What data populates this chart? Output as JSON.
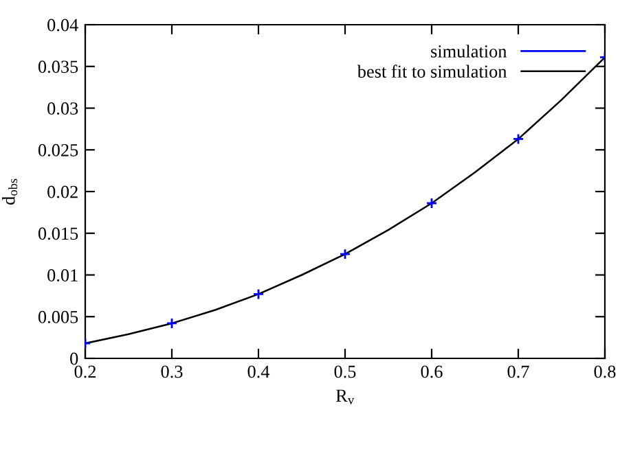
{
  "chart_data": {
    "type": "scatter",
    "xlabel": "R$_{v}$",
    "ylabel": "d$_{obs}$",
    "x": [
      0.2,
      0.3,
      0.4,
      0.5,
      0.6,
      0.7,
      0.8
    ],
    "series": [
      {
        "name": "simulation",
        "color": "#0000ff",
        "marker": "cross",
        "values": [
          0.0018,
          0.0042,
          0.0077,
          0.0125,
          0.0186,
          0.0263,
          0.0361
        ]
      },
      {
        "name": "best fit to simulation",
        "type": "line",
        "color": "#000000",
        "line_style": "solid",
        "x": [
          0.2,
          0.25,
          0.3,
          0.35,
          0.4,
          0.45,
          0.5,
          0.55,
          0.6,
          0.65,
          0.7,
          0.75,
          0.8
        ],
        "values": [
          0.0018,
          0.0029,
          0.0042,
          0.0058,
          0.0077,
          0.01,
          0.0125,
          0.0154,
          0.0186,
          0.0223,
          0.0263,
          0.031,
          0.0361
        ]
      }
    ],
    "xlim": [
      0.2,
      0.8
    ],
    "xticks": [
      0.2,
      0.3,
      0.4,
      0.5,
      0.6,
      0.7,
      0.8
    ],
    "ylim": [
      0,
      0.04
    ],
    "yticks": [
      0,
      0.005,
      0.01,
      0.015,
      0.02,
      0.025,
      0.03,
      0.035,
      0.04
    ],
    "grid": false,
    "legend": "top right"
  }
}
